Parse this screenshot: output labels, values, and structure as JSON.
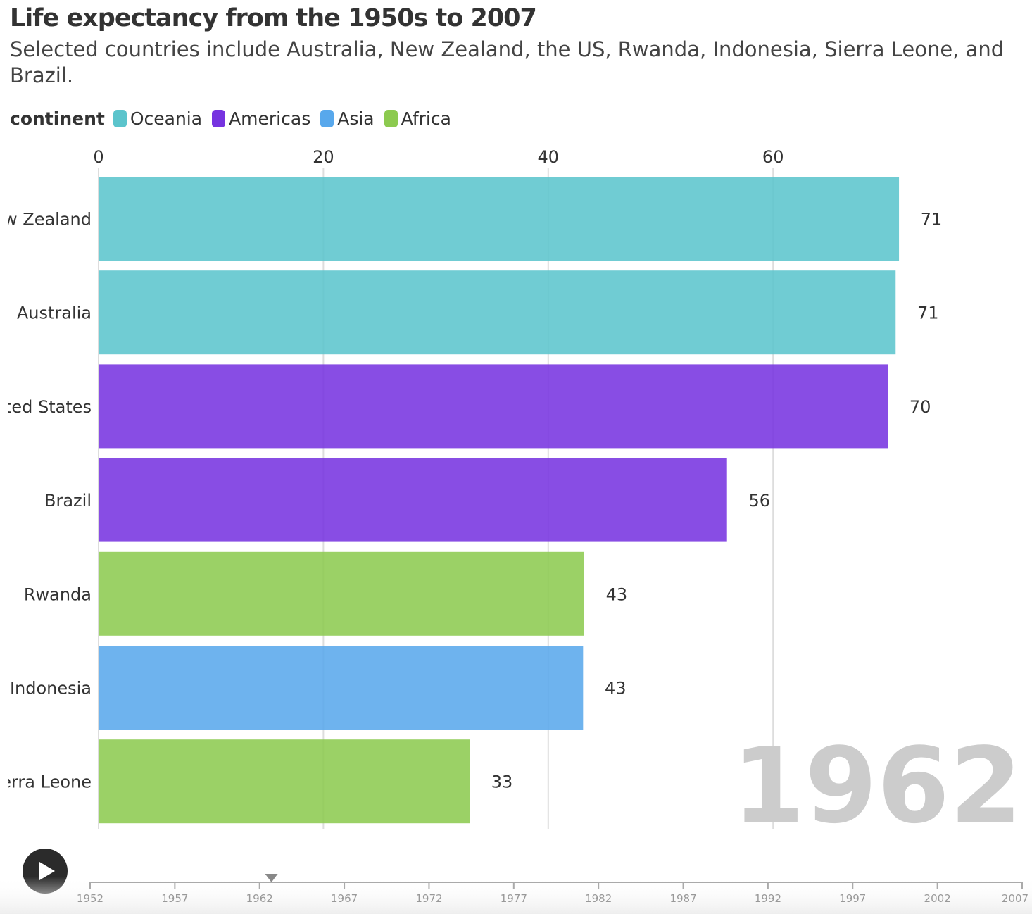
{
  "title": "Life expectancy from the 1950s to 2007",
  "subtitle": "Selected countries include Australia, New Zealand, the US, Rwanda, Indonesia, Sierra Leone, and Brazil.",
  "legend": {
    "title": "continent",
    "items": [
      {
        "label": "Oceania",
        "color": "#5bc4cc"
      },
      {
        "label": "Americas",
        "color": "#7633e0"
      },
      {
        "label": "Asia",
        "color": "#58a8ec"
      },
      {
        "label": "Africa",
        "color": "#8cca4f"
      }
    ]
  },
  "chart_data": {
    "type": "bar",
    "orientation": "horizontal",
    "current_year": "1962",
    "categories": [
      "New Zealand",
      "Australia",
      "United States",
      "Brazil",
      "Rwanda",
      "Indonesia",
      "Sierra Leone"
    ],
    "values": [
      71.2,
      70.9,
      70.2,
      55.9,
      43.2,
      43.1,
      33.0
    ],
    "value_labels": [
      "71",
      "71",
      "70",
      "56",
      "43",
      "43",
      "33"
    ],
    "continents": [
      "Oceania",
      "Oceania",
      "Americas",
      "Americas",
      "Africa",
      "Asia",
      "Africa"
    ],
    "x_ticks": [
      0,
      20,
      40,
      60
    ],
    "xlim": [
      0,
      82
    ],
    "grid": true,
    "legend_position": "top-left"
  },
  "timeline": {
    "years": [
      "1952",
      "1957",
      "1962",
      "1967",
      "1972",
      "1977",
      "1982",
      "1987",
      "1992",
      "1997",
      "2002",
      "2007"
    ],
    "current_year": 1962.7,
    "range": [
      1952,
      2007
    ]
  },
  "controls": {
    "play_icon": "play-icon"
  }
}
